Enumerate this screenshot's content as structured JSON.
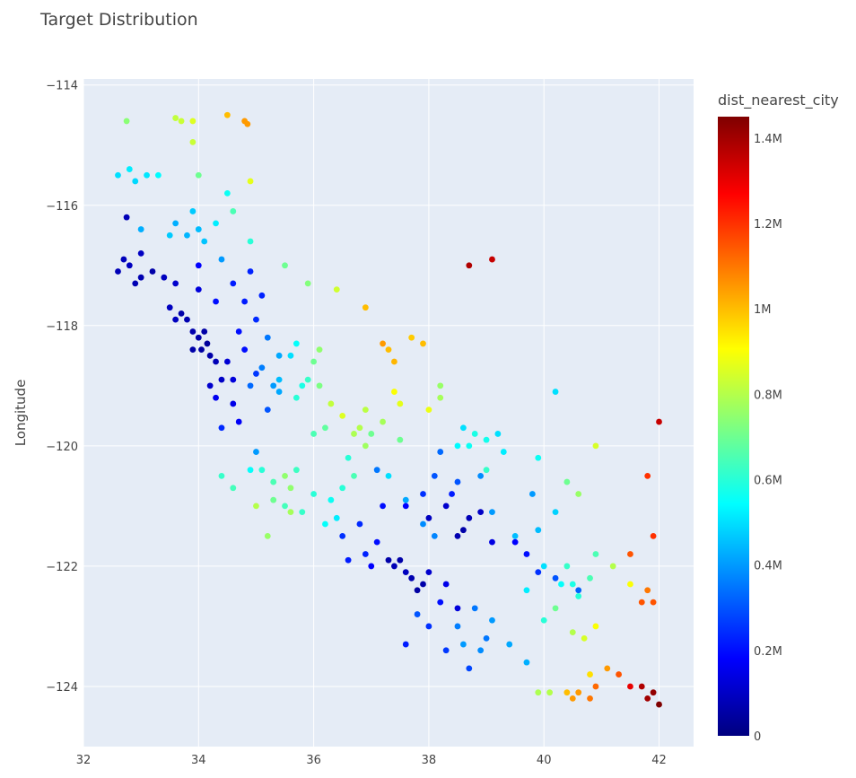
{
  "chart_data": {
    "type": "scatter",
    "title": "Target Distribution",
    "xlabel": "",
    "ylabel": "Longitude",
    "xlim": [
      32,
      42.6
    ],
    "ylim": [
      -125,
      -113.9
    ],
    "x_ticks": [
      "32",
      "34",
      "36",
      "38",
      "40",
      "42"
    ],
    "y_ticks": [
      "−114",
      "−116",
      "−118",
      "−120",
      "−122",
      "−124"
    ],
    "colorbar": {
      "title": "dist_nearest_city",
      "range": [
        0,
        1450000
      ],
      "ticks": [
        "0",
        "0.2M",
        "0.4M",
        "0.6M",
        "0.8M",
        "1M",
        "1.2M",
        "1.4M"
      ],
      "colorscale": "Jet"
    },
    "plot_bg": "#e5ecf6",
    "grid": true,
    "points": [
      [
        32.6,
        -117.1,
        80000
      ],
      [
        32.8,
        -117.0,
        90000
      ],
      [
        33.0,
        -117.2,
        70000
      ],
      [
        33.2,
        -117.1,
        60000
      ],
      [
        32.9,
        -117.3,
        75000
      ],
      [
        33.4,
        -117.2,
        90000
      ],
      [
        33.6,
        -117.3,
        110000
      ],
      [
        32.7,
        -116.9,
        85000
      ],
      [
        32.75,
        -116.2,
        80000
      ],
      [
        33.0,
        -116.8,
        95000
      ],
      [
        33.5,
        -117.7,
        90000
      ],
      [
        33.8,
        -117.9,
        70000
      ],
      [
        34.0,
        -118.2,
        60000
      ],
      [
        34.05,
        -118.4,
        50000
      ],
      [
        34.1,
        -118.1,
        55000
      ],
      [
        34.2,
        -118.5,
        60000
      ],
      [
        33.9,
        -118.1,
        65000
      ],
      [
        34.15,
        -118.3,
        40000
      ],
      [
        34.3,
        -118.6,
        80000
      ],
      [
        34.4,
        -118.9,
        100000
      ],
      [
        34.6,
        -119.3,
        150000
      ],
      [
        34.7,
        -119.6,
        170000
      ],
      [
        33.7,
        -117.8,
        60000
      ],
      [
        34.5,
        -118.6,
        120000
      ],
      [
        34.6,
        -118.9,
        130000
      ],
      [
        34.8,
        -118.4,
        200000
      ],
      [
        34.3,
        -117.6,
        200000
      ],
      [
        34.6,
        -117.3,
        220000
      ],
      [
        34.9,
        -117.1,
        230000
      ],
      [
        35.1,
        -117.5,
        230000
      ],
      [
        34.0,
        -117.4,
        130000
      ],
      [
        34.0,
        -117.0,
        180000
      ],
      [
        33.6,
        -117.9,
        90000
      ],
      [
        33.9,
        -118.4,
        60000
      ],
      [
        34.2,
        -119.0,
        110000
      ],
      [
        33.6,
        -116.3,
        430000
      ],
      [
        33.8,
        -116.5,
        440000
      ],
      [
        34.0,
        -116.4,
        450000
      ],
      [
        33.9,
        -116.1,
        470000
      ],
      [
        34.1,
        -116.6,
        460000
      ],
      [
        32.6,
        -115.5,
        500000
      ],
      [
        32.9,
        -115.6,
        490000
      ],
      [
        33.1,
        -115.5,
        510000
      ],
      [
        32.8,
        -115.4,
        520000
      ],
      [
        33.3,
        -115.5,
        540000
      ],
      [
        32.75,
        -114.6,
        740000
      ],
      [
        33.6,
        -114.55,
        820000
      ],
      [
        33.7,
        -114.6,
        830000
      ],
      [
        33.9,
        -114.6,
        860000
      ],
      [
        34.5,
        -114.5,
        1000000
      ],
      [
        34.8,
        -114.6,
        1050000
      ],
      [
        34.85,
        -114.65,
        1050000
      ],
      [
        33.9,
        -114.95,
        830000
      ],
      [
        34.9,
        -115.6,
        870000
      ],
      [
        34.0,
        -115.5,
        700000
      ],
      [
        34.6,
        -116.1,
        650000
      ],
      [
        34.9,
        -116.6,
        600000
      ],
      [
        35.5,
        -117.0,
        700000
      ],
      [
        35.9,
        -117.3,
        730000
      ],
      [
        36.4,
        -117.4,
        840000
      ],
      [
        36.9,
        -117.7,
        1000000
      ],
      [
        38.7,
        -117.0,
        1380000
      ],
      [
        39.1,
        -116.9,
        1350000
      ],
      [
        35.0,
        -118.8,
        260000
      ],
      [
        35.3,
        -119.0,
        400000
      ],
      [
        35.4,
        -118.9,
        450000
      ],
      [
        35.6,
        -118.5,
        500000
      ],
      [
        35.7,
        -118.3,
        550000
      ],
      [
        35.2,
        -119.4,
        300000
      ],
      [
        35.0,
        -120.1,
        400000
      ],
      [
        35.3,
        -120.6,
        650000
      ],
      [
        35.6,
        -120.7,
        750000
      ],
      [
        35.3,
        -120.9,
        700000
      ],
      [
        35.1,
        -120.4,
        600000
      ],
      [
        34.9,
        -120.4,
        550000
      ],
      [
        35.0,
        -121.0,
        800000
      ],
      [
        35.5,
        -120.5,
        750000
      ],
      [
        35.6,
        -121.1,
        780000
      ],
      [
        35.2,
        -121.5,
        760000
      ],
      [
        34.4,
        -120.5,
        620000
      ],
      [
        34.6,
        -120.7,
        640000
      ],
      [
        36.1,
        -119.0,
        720000
      ],
      [
        36.3,
        -119.3,
        820000
      ],
      [
        36.5,
        -119.5,
        860000
      ],
      [
        36.7,
        -119.8,
        790000
      ],
      [
        36.8,
        -119.7,
        800000
      ],
      [
        36.9,
        -120.0,
        770000
      ],
      [
        37.0,
        -119.8,
        700000
      ],
      [
        37.3,
        -120.5,
        500000
      ],
      [
        37.6,
        -120.9,
        420000
      ],
      [
        37.9,
        -121.3,
        380000
      ],
      [
        38.1,
        -121.5,
        370000
      ],
      [
        36.0,
        -119.8,
        650000
      ],
      [
        36.6,
        -120.2,
        600000
      ],
      [
        36.2,
        -119.7,
        680000
      ],
      [
        37.3,
        -118.4,
        1000000
      ],
      [
        37.4,
        -118.6,
        1010000
      ],
      [
        37.2,
        -118.3,
        1050000
      ],
      [
        37.7,
        -118.2,
        980000
      ],
      [
        37.9,
        -118.3,
        1000000
      ],
      [
        38.0,
        -119.4,
        880000
      ],
      [
        38.2,
        -119.2,
        780000
      ],
      [
        39.0,
        -119.9,
        570000
      ],
      [
        38.7,
        -120.0,
        560000
      ],
      [
        38.5,
        -120.0,
        540000
      ],
      [
        39.3,
        -120.1,
        520000
      ],
      [
        38.8,
        -119.8,
        580000
      ],
      [
        39.0,
        -120.4,
        620000
      ],
      [
        37.5,
        -121.9,
        60000
      ],
      [
        37.7,
        -122.2,
        70000
      ],
      [
        37.8,
        -122.4,
        50000
      ],
      [
        37.4,
        -122.0,
        80000
      ],
      [
        37.3,
        -121.9,
        60000
      ],
      [
        37.6,
        -122.1,
        90000
      ],
      [
        37.9,
        -122.3,
        60000
      ],
      [
        38.0,
        -122.1,
        110000
      ],
      [
        38.3,
        -122.3,
        150000
      ],
      [
        38.5,
        -122.7,
        130000
      ],
      [
        37.0,
        -122.0,
        180000
      ],
      [
        36.9,
        -121.8,
        230000
      ],
      [
        36.6,
        -121.9,
        220000
      ],
      [
        36.5,
        -121.5,
        250000
      ],
      [
        37.1,
        -121.6,
        200000
      ],
      [
        38.6,
        -121.4,
        60000
      ],
      [
        38.5,
        -121.5,
        70000
      ],
      [
        38.7,
        -121.2,
        80000
      ],
      [
        38.9,
        -121.1,
        100000
      ],
      [
        39.1,
        -121.6,
        140000
      ],
      [
        39.5,
        -121.6,
        180000
      ],
      [
        39.7,
        -121.8,
        200000
      ],
      [
        39.9,
        -122.1,
        250000
      ],
      [
        40.2,
        -122.2,
        300000
      ],
      [
        40.6,
        -122.4,
        320000
      ],
      [
        38.3,
        -121.0,
        110000
      ],
      [
        38.0,
        -121.2,
        90000
      ],
      [
        37.9,
        -120.8,
        250000
      ],
      [
        38.1,
        -120.5,
        300000
      ],
      [
        38.4,
        -120.8,
        220000
      ],
      [
        37.2,
        -121.0,
        200000
      ],
      [
        36.8,
        -121.3,
        240000
      ],
      [
        37.6,
        -121.0,
        180000
      ],
      [
        37.1,
        -120.4,
        350000
      ],
      [
        38.8,
        -122.7,
        350000
      ],
      [
        39.1,
        -122.9,
        400000
      ],
      [
        39.4,
        -123.3,
        420000
      ],
      [
        39.7,
        -123.6,
        430000
      ],
      [
        38.9,
        -123.4,
        380000
      ],
      [
        38.5,
        -123.0,
        360000
      ],
      [
        40.3,
        -122.3,
        550000
      ],
      [
        40.5,
        -122.3,
        580000
      ],
      [
        40.6,
        -122.5,
        600000
      ],
      [
        40.8,
        -122.2,
        650000
      ],
      [
        40.4,
        -122.0,
        620000
      ],
      [
        40.0,
        -122.0,
        500000
      ],
      [
        39.9,
        -121.4,
        450000
      ],
      [
        40.2,
        -121.1,
        480000
      ],
      [
        40.4,
        -120.6,
        700000
      ],
      [
        40.6,
        -120.8,
        760000
      ],
      [
        40.9,
        -121.8,
        650000
      ],
      [
        41.2,
        -122.0,
        800000
      ],
      [
        41.5,
        -122.3,
        900000
      ],
      [
        41.8,
        -122.4,
        1100000
      ],
      [
        41.9,
        -122.6,
        1150000
      ],
      [
        41.7,
        -122.6,
        1150000
      ],
      [
        41.9,
        -121.5,
        1200000
      ],
      [
        41.8,
        -120.5,
        1200000
      ],
      [
        42.0,
        -119.6,
        1350000
      ],
      [
        41.5,
        -121.8,
        1150000
      ],
      [
        40.4,
        -124.1,
        1000000
      ],
      [
        40.6,
        -124.1,
        1050000
      ],
      [
        40.8,
        -124.2,
        1100000
      ],
      [
        40.9,
        -124.0,
        1120000
      ],
      [
        40.5,
        -124.2,
        1050000
      ],
      [
        41.8,
        -124.2,
        1400000
      ],
      [
        41.9,
        -124.1,
        1420000
      ],
      [
        42.0,
        -124.3,
        1450000
      ],
      [
        41.7,
        -124.0,
        1380000
      ],
      [
        41.5,
        -124.0,
        1300000
      ],
      [
        40.1,
        -124.1,
        800000
      ],
      [
        39.9,
        -124.1,
        790000
      ],
      [
        40.8,
        -123.8,
        950000
      ],
      [
        41.1,
        -123.7,
        1050000
      ],
      [
        41.3,
        -123.8,
        1150000
      ],
      [
        40.5,
        -123.1,
        800000
      ],
      [
        40.7,
        -123.2,
        850000
      ],
      [
        40.9,
        -123.0,
        900000
      ],
      [
        40.2,
        -122.7,
        700000
      ],
      [
        40.0,
        -122.9,
        600000
      ],
      [
        39.7,
        -122.4,
        520000
      ],
      [
        39.5,
        -121.5,
        450000
      ],
      [
        39.9,
        -120.2,
        560000
      ],
      [
        40.2,
        -119.1,
        500000
      ],
      [
        40.9,
        -120.0,
        850000
      ],
      [
        39.1,
        -121.1,
        400000
      ],
      [
        38.9,
        -120.5,
        380000
      ],
      [
        38.6,
        -123.3,
        400000
      ],
      [
        38.2,
        -122.6,
        200000
      ],
      [
        37.8,
        -122.8,
        300000
      ],
      [
        37.6,
        -123.3,
        220000
      ],
      [
        38.0,
        -123.0,
        250000
      ],
      [
        38.3,
        -123.4,
        260000
      ],
      [
        38.7,
        -123.7,
        280000
      ],
      [
        39.0,
        -123.2,
        350000
      ],
      [
        36.2,
        -121.3,
        550000
      ],
      [
        36.4,
        -121.2,
        520000
      ],
      [
        36.3,
        -120.9,
        560000
      ],
      [
        35.8,
        -121.1,
        620000
      ],
      [
        35.5,
        -121.0,
        640000
      ],
      [
        36.0,
        -120.8,
        600000
      ],
      [
        35.7,
        -120.4,
        630000
      ],
      [
        36.5,
        -120.7,
        600000
      ],
      [
        36.7,
        -120.5,
        650000
      ],
      [
        37.2,
        -119.6,
        780000
      ],
      [
        37.5,
        -119.9,
        700000
      ],
      [
        37.5,
        -119.3,
        870000
      ],
      [
        38.2,
        -119.0,
        760000
      ],
      [
        37.4,
        -119.1,
        900000
      ],
      [
        36.9,
        -119.4,
        810000
      ],
      [
        38.2,
        -120.1,
        330000
      ],
      [
        38.5,
        -120.6,
        300000
      ],
      [
        38.6,
        -119.7,
        500000
      ],
      [
        39.2,
        -119.8,
        500000
      ],
      [
        39.8,
        -120.8,
        400000
      ],
      [
        33.0,
        -116.4,
        430000
      ],
      [
        33.5,
        -116.5,
        470000
      ],
      [
        34.3,
        -116.3,
        520000
      ],
      [
        34.5,
        -115.8,
        560000
      ],
      [
        34.4,
        -116.9,
        400000
      ],
      [
        34.8,
        -117.6,
        220000
      ],
      [
        35.0,
        -117.9,
        240000
      ],
      [
        34.7,
        -118.1,
        200000
      ],
      [
        35.2,
        -118.2,
        350000
      ],
      [
        35.4,
        -118.5,
        420000
      ],
      [
        35.7,
        -119.2,
        600000
      ],
      [
        35.8,
        -119.0,
        580000
      ],
      [
        35.9,
        -118.9,
        620000
      ],
      [
        36.0,
        -118.6,
        700000
      ],
      [
        36.1,
        -118.4,
        750000
      ],
      [
        34.9,
        -119.0,
        330000
      ],
      [
        35.1,
        -118.7,
        360000
      ],
      [
        35.4,
        -119.1,
        420000
      ],
      [
        34.4,
        -119.7,
        240000
      ],
      [
        34.3,
        -119.2,
        160000
      ]
    ]
  }
}
